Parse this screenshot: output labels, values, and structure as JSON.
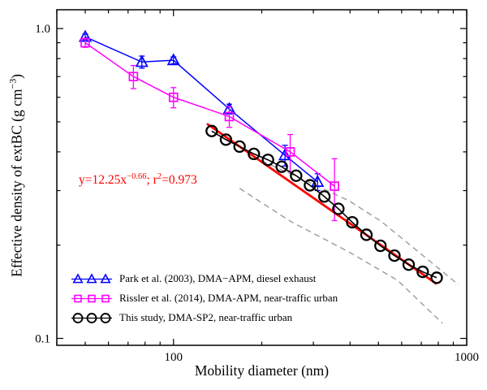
{
  "figure": {
    "background": "#ffffff"
  },
  "annotation": {
    "prefix": "y=12.25x",
    "exponent": "−0.66",
    "mid": "; r",
    "sup": "2",
    "suffix": "=0.973",
    "color": "#ff0000"
  },
  "ylabel": {
    "prefix": "Effective density of extBC (g cm",
    "sup": "−3",
    "suffix": ")"
  },
  "chart_data": {
    "type": "line",
    "title": "",
    "xlabel": "Mobility diameter (nm)",
    "ylabel": "Effective density of extBC (g cm−3)",
    "x_scale": "log",
    "y_scale": "log",
    "xlim": [
      40,
      1000
    ],
    "ylim": [
      0.095,
      1.15
    ],
    "grid": false,
    "legend_position": "lower left",
    "x_ticks": [
      {
        "value": 100,
        "label": "100"
      },
      {
        "value": 1000,
        "label": "1000"
      }
    ],
    "y_ticks": [
      {
        "value": 0.1,
        "label": "0.1"
      },
      {
        "value": 1.0,
        "label": "1.0"
      }
    ],
    "series": [
      {
        "id": "park",
        "name": "Park et al. (2003), DMA−APM, diesel exhaust",
        "marker": "triangle",
        "color": "#0000ff",
        "marker_size": 7,
        "marker_stroke": 1.7,
        "line_width": 1.5,
        "x": [
          50,
          78,
          100,
          155,
          240,
          310
        ],
        "y": [
          0.94,
          0.78,
          0.79,
          0.55,
          0.39,
          0.32
        ],
        "yerr": [
          0.02,
          0.035,
          0.02,
          0.02,
          0.03,
          0.02
        ]
      },
      {
        "id": "rissler",
        "name": "Rissler et al. (2014), DMA-APM, near-traffic urban",
        "marker": "square",
        "color": "#ff00ff",
        "marker_size": 6.2,
        "marker_stroke": 1.7,
        "line_width": 1.5,
        "x": [
          50,
          73,
          100,
          155,
          250,
          354
        ],
        "y": [
          0.9,
          0.7,
          0.6,
          0.52,
          0.4,
          0.31
        ],
        "yerr": [
          0.03,
          0.06,
          0.045,
          0.04,
          0.055,
          0.07
        ]
      },
      {
        "id": "this-study",
        "name": "This study, DMA-SP2, near-traffic urban",
        "marker": "circle",
        "color": "#000000",
        "marker_size": 6.5,
        "marker_stroke": 2.3,
        "line_width": 1.6,
        "x": [
          135,
          151,
          168,
          188,
          210,
          234,
          262,
          292,
          327,
          365,
          407,
          455,
          508,
          567,
          634,
          708,
          790
        ],
        "y": [
          0.467,
          0.438,
          0.416,
          0.394,
          0.377,
          0.358,
          0.335,
          0.312,
          0.287,
          0.262,
          0.237,
          0.216,
          0.199,
          0.185,
          0.173,
          0.164,
          0.157
        ]
      }
    ],
    "fit": {
      "label": "y=12.25x^−0.66; r^2=0.973",
      "a": 12.25,
      "b": -0.66,
      "x_range": [
        130,
        790
      ],
      "color": "#ff0000"
    },
    "bounds": {
      "color": "#9a9a9a",
      "upper": {
        "x": [
          200,
          280,
          397,
          510,
          938
        ],
        "y": [
          0.374,
          0.324,
          0.278,
          0.239,
          0.149
        ]
      },
      "lower": {
        "x": [
          168,
          250,
          397,
          581,
          826
        ],
        "y": [
          0.305,
          0.239,
          0.19,
          0.154,
          0.112
        ]
      }
    }
  }
}
